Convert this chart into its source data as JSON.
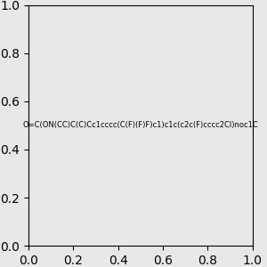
{
  "smiles": "O=C(ON(CC)C(C)Cc1cccc(C(F)(F)F)c1)c1c(c2c(F)cccc2Cl)noc1C",
  "background_color": "#e8e8e8",
  "image_size": 300
}
